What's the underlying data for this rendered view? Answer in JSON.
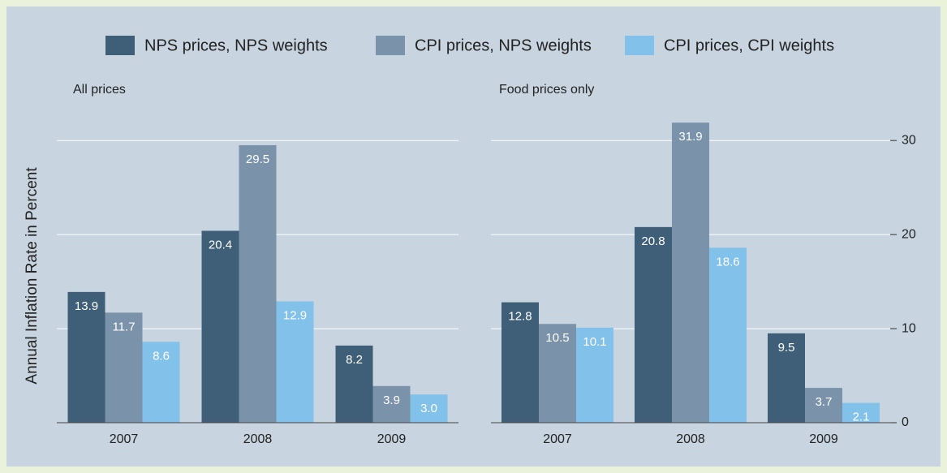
{
  "chart_data": [
    {
      "type": "bar",
      "title": "All prices",
      "ylabel": "Annual Inflation Rate in Percent",
      "categories": [
        "2007",
        "2008",
        "2009"
      ],
      "series": [
        {
          "name": "NPS prices, NPS weights",
          "color": "#3e5f77",
          "values": [
            13.9,
            20.4,
            8.2
          ]
        },
        {
          "name": "CPI prices, NPS weights",
          "color": "#7a92aa",
          "values": [
            11.7,
            29.5,
            3.9
          ]
        },
        {
          "name": "CPI prices, CPI weights",
          "color": "#82c1ea",
          "values": [
            8.6,
            12.9,
            3.0
          ],
          "value_labels": [
            "8.6",
            "12.9",
            "3.0"
          ]
        }
      ],
      "ylim": [
        0,
        32
      ],
      "yticks": [
        0,
        10,
        20,
        30
      ],
      "grid": true
    },
    {
      "type": "bar",
      "title": "Food prices only",
      "categories": [
        "2007",
        "2008",
        "2009"
      ],
      "series": [
        {
          "values": [
            12.8,
            20.8,
            9.5
          ]
        },
        {
          "values": [
            10.5,
            31.9,
            3.7
          ]
        },
        {
          "values": [
            10.1,
            18.6,
            2.1
          ]
        }
      ],
      "ylim": [
        0,
        32
      ],
      "yticks": [
        0,
        10,
        20,
        30
      ],
      "grid": true
    }
  ]
}
